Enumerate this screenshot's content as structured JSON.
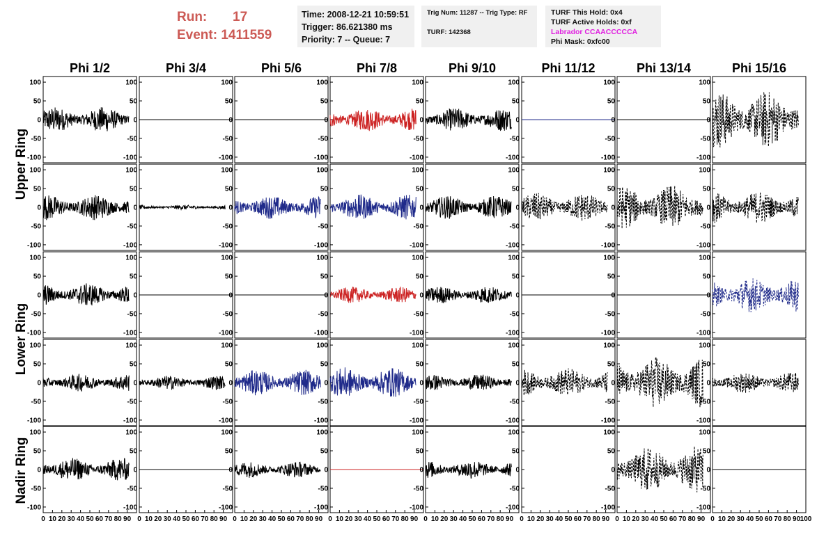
{
  "header": {
    "run_label": "Run:",
    "run_value": "17",
    "event_label": "Event:",
    "event_value": "1411559",
    "time": "Time: 2008-12-21 10:59:51",
    "trigger": "Trigger: 86.621380 ms",
    "priority": "Priority: 7 -- Queue: 7",
    "trig_num": "Trig Num: 11287 -- Trig Type: RF",
    "turf": "TURF: 142368",
    "turf_this_hold": "TURF This Hold: 0x4",
    "turf_active_holds": "TURF Active Holds: 0xf",
    "labrador": "Labrador CCAACCCCCA",
    "phi_mask": "Phi Mask: 0xfc00"
  },
  "colors": {
    "header_red": "#cc5a55",
    "magenta": "#e020e0",
    "red": "#cc2222",
    "blue": "#1f2a8a",
    "black": "#000000"
  },
  "chart_data": {
    "type": "line",
    "columns": [
      "Phi 1/2",
      "Phi 3/4",
      "Phi 5/6",
      "Phi 7/8",
      "Phi 9/10",
      "Phi 11/12",
      "Phi 13/14",
      "Phi 15/16"
    ],
    "ring_labels": [
      "Upper Ring",
      "Lower Ring",
      "Nadir Ring"
    ],
    "rows_per_ring": [
      2,
      2,
      1
    ],
    "y_ticks": [
      "100",
      "50",
      "0",
      "-50",
      "-100"
    ],
    "ylim": [
      -115,
      115
    ],
    "xlim": [
      0,
      100
    ],
    "x_tick_labels": [
      "0",
      "10",
      "20",
      "30",
      "40",
      "50",
      "60",
      "70",
      "80",
      "90",
      "100"
    ],
    "n_samples": 260,
    "panels": [
      [
        {
          "style": "solid",
          "color": "black",
          "amp": 22
        },
        {
          "style": "flat",
          "color": "black",
          "amp": 0
        },
        {
          "style": "flat",
          "color": "black",
          "amp": 0
        },
        {
          "style": "solid",
          "color": "red",
          "amp": 20
        },
        {
          "style": "solid",
          "color": "black",
          "amp": 20
        },
        {
          "style": "flat",
          "color": "blue",
          "amp": 0
        },
        {
          "style": "flat",
          "color": "black",
          "amp": 0
        },
        {
          "style": "dashed",
          "color": "black",
          "amp": 50
        }
      ],
      [
        {
          "style": "solid",
          "color": "black",
          "amp": 22
        },
        {
          "style": "solid",
          "color": "black",
          "amp": 4
        },
        {
          "style": "solid",
          "color": "blue",
          "amp": 20
        },
        {
          "style": "solid",
          "color": "blue",
          "amp": 22
        },
        {
          "style": "solid",
          "color": "black",
          "amp": 20
        },
        {
          "style": "dashed",
          "color": "black",
          "amp": 25
        },
        {
          "style": "dashed",
          "color": "black",
          "amp": 38
        },
        {
          "style": "dashed",
          "color": "black",
          "amp": 28
        }
      ],
      [
        {
          "style": "solid",
          "color": "black",
          "amp": 20
        },
        {
          "style": "flat",
          "color": "black",
          "amp": 0
        },
        {
          "style": "flat",
          "color": "black",
          "amp": 0
        },
        {
          "style": "solid",
          "color": "red",
          "amp": 14
        },
        {
          "style": "solid",
          "color": "black",
          "amp": 15
        },
        {
          "style": "flat",
          "color": "black",
          "amp": 0
        },
        {
          "style": "flat",
          "color": "black",
          "amp": 0
        },
        {
          "style": "dashed",
          "color": "blue",
          "amp": 30
        }
      ],
      [
        {
          "style": "solid",
          "color": "black",
          "amp": 15
        },
        {
          "style": "solid",
          "color": "black",
          "amp": 12
        },
        {
          "style": "solid",
          "color": "blue",
          "amp": 22
        },
        {
          "style": "solid",
          "color": "blue",
          "amp": 26
        },
        {
          "style": "solid",
          "color": "black",
          "amp": 14
        },
        {
          "style": "dashed",
          "color": "black",
          "amp": 25
        },
        {
          "style": "dashed",
          "color": "black",
          "amp": 45
        },
        {
          "style": "dashed",
          "color": "black",
          "amp": 18
        }
      ],
      [
        {
          "style": "solid",
          "color": "black",
          "amp": 20
        },
        {
          "style": "flat",
          "color": "black",
          "amp": 0
        },
        {
          "style": "solid",
          "color": "black",
          "amp": 14
        },
        {
          "style": "flat",
          "color": "red",
          "amp": 0
        },
        {
          "style": "solid",
          "color": "black",
          "amp": 16
        },
        {
          "style": "none",
          "color": "black",
          "amp": 0
        },
        {
          "style": "dashed",
          "color": "black",
          "amp": 40
        },
        {
          "style": "flat",
          "color": "black",
          "amp": 0
        }
      ]
    ]
  }
}
